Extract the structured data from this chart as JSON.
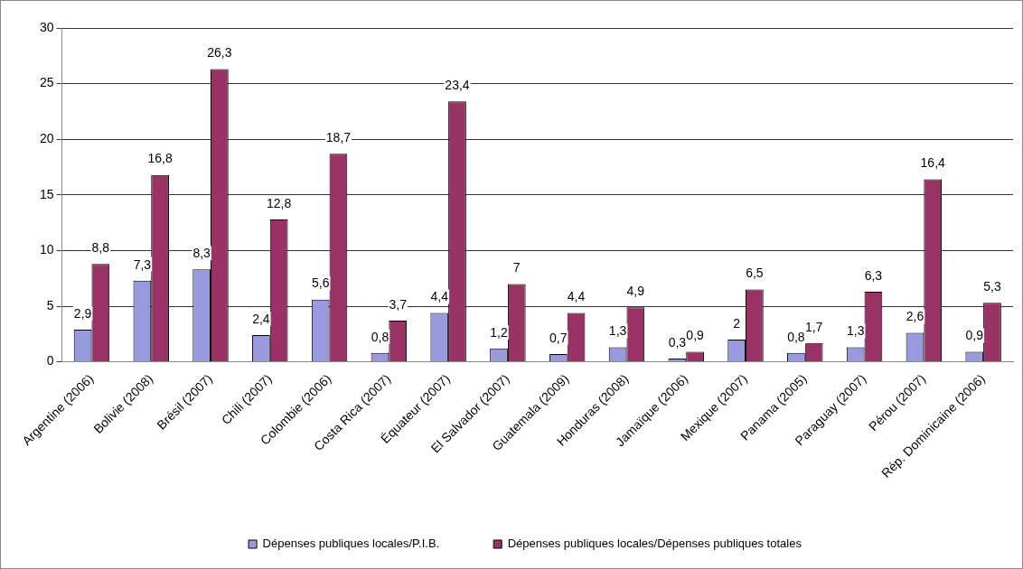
{
  "chart_data": {
    "type": "bar",
    "categories": [
      "Argentine (2006)",
      "Bolivie (2008)",
      "Brésil (2007)",
      "Chili (2007)",
      "Colombie (2006)",
      "Costa Rica (2007)",
      "Équateur (2007)",
      "El Salvador (2007)",
      "Guatemala (2009)",
      "Honduras (2008)",
      "Jamaïque (2006)",
      "Mexique (2007)",
      "Panama (2005)",
      "Paraguay (2007)",
      "Pérou (2007)",
      "Rép. Dominicaine (2006)"
    ],
    "series": [
      {
        "name": "Dépenses publiques locales/P.I.B.",
        "color": "#9999dd",
        "values": [
          2.9,
          7.3,
          8.3,
          2.4,
          5.6,
          0.8,
          4.4,
          1.2,
          0.7,
          1.3,
          0.3,
          2,
          0.8,
          1.3,
          2.6,
          0.9
        ],
        "value_labels": [
          "2,9",
          "7,3",
          "8,3",
          "2,4",
          "5,6",
          "0,8",
          "4,4",
          "1,2",
          "0,7",
          "1,3",
          "0,3",
          "2",
          "0,8",
          "1,3",
          "2,6",
          "0,9"
        ]
      },
      {
        "name": "Dépenses publiques locales/Dépenses publiques totales",
        "color": "#993366",
        "values": [
          8.8,
          16.8,
          26.3,
          12.8,
          18.7,
          3.7,
          23.4,
          7,
          4.4,
          4.9,
          0.9,
          6.5,
          1.7,
          6.3,
          16.4,
          5.3
        ],
        "value_labels": [
          "8,8",
          "16,8",
          "26,3",
          "12,8",
          "18,7",
          "3,7",
          "23,4",
          "7",
          "4,4",
          "4,9",
          "0,9",
          "6,5",
          "1,7",
          "6,3",
          "16,4",
          "5,3"
        ]
      }
    ],
    "ylim": [
      0,
      30
    ],
    "yticks": [
      0,
      5,
      10,
      15,
      20,
      25,
      30
    ],
    "grid": "y",
    "legend": "bottom"
  }
}
